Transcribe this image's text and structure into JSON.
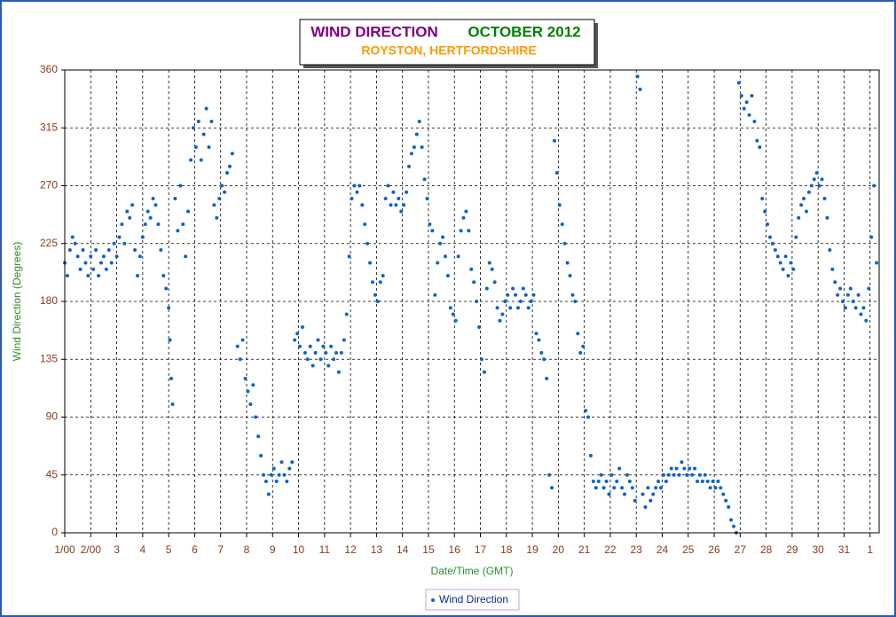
{
  "chart_data": {
    "type": "scatter",
    "title": "WIND DIRECTION",
    "period": "OCTOBER 2012",
    "subtitle": "ROYSTON, HERTFORDSHIRE",
    "title_color": "#800080",
    "period_color": "#008000",
    "subtitle_color": "#ff9900",
    "xlabel": "Date/Time (GMT)",
    "ylabel": "Wind Direction (Degrees)",
    "grid": true,
    "legend": "bottom",
    "xlim": [
      1,
      32.35
    ],
    "ylim": [
      0,
      360
    ],
    "yticks": [
      0,
      45,
      90,
      135,
      180,
      225,
      270,
      315,
      360
    ],
    "xticks": [
      {
        "value": 1,
        "label": "1/00"
      },
      {
        "value": 2,
        "label": "2/00"
      },
      3,
      4,
      5,
      6,
      7,
      8,
      9,
      10,
      11,
      12,
      13,
      14,
      15,
      16,
      17,
      18,
      19,
      20,
      21,
      22,
      23,
      24,
      25,
      26,
      27,
      28,
      29,
      30,
      31,
      {
        "value": 32,
        "label": "1"
      }
    ],
    "x": [
      1.0,
      1.1,
      1.2,
      1.3,
      1.4,
      1.5,
      1.6,
      1.7,
      1.8,
      1.9,
      2.0,
      2.1,
      2.2,
      2.3,
      2.4,
      2.5,
      2.6,
      2.7,
      2.8,
      2.9,
      3.0,
      3.1,
      3.2,
      3.3,
      3.4,
      3.5,
      3.6,
      3.7,
      3.8,
      3.9,
      4.0,
      4.1,
      4.2,
      4.3,
      4.4,
      4.5,
      4.6,
      4.7,
      4.8,
      4.9,
      5.0,
      5.05,
      5.1,
      5.15,
      5.25,
      5.35,
      5.45,
      5.55,
      5.65,
      5.75,
      5.85,
      5.95,
      6.05,
      6.15,
      6.25,
      6.35,
      6.45,
      6.55,
      6.65,
      6.75,
      6.85,
      6.95,
      7.05,
      7.15,
      7.25,
      7.35,
      7.45,
      7.65,
      7.75,
      7.85,
      7.95,
      8.05,
      8.15,
      8.25,
      8.35,
      8.45,
      8.55,
      8.65,
      8.75,
      8.85,
      8.95,
      9.05,
      9.15,
      9.25,
      9.35,
      9.45,
      9.55,
      9.65,
      9.75,
      9.85,
      9.95,
      10.05,
      10.15,
      10.25,
      10.35,
      10.45,
      10.55,
      10.65,
      10.75,
      10.85,
      10.95,
      11.05,
      11.15,
      11.25,
      11.35,
      11.45,
      11.55,
      11.65,
      11.75,
      11.85,
      11.95,
      12.05,
      12.15,
      12.25,
      12.35,
      12.45,
      12.55,
      12.65,
      12.75,
      12.85,
      12.95,
      13.05,
      13.15,
      13.25,
      13.35,
      13.45,
      13.55,
      13.65,
      13.75,
      13.85,
      13.95,
      14.05,
      14.15,
      14.25,
      14.35,
      14.45,
      14.55,
      14.65,
      14.75,
      14.85,
      14.95,
      15.05,
      15.15,
      15.25,
      15.35,
      15.45,
      15.55,
      15.65,
      15.75,
      15.85,
      15.95,
      16.05,
      16.15,
      16.25,
      16.35,
      16.45,
      16.55,
      16.65,
      16.75,
      16.85,
      16.95,
      17.05,
      17.15,
      17.25,
      17.35,
      17.45,
      17.55,
      17.65,
      17.75,
      17.85,
      17.95,
      18.05,
      18.15,
      18.25,
      18.35,
      18.45,
      18.55,
      18.65,
      18.75,
      18.85,
      18.95,
      19.05,
      19.15,
      19.25,
      19.35,
      19.45,
      19.55,
      19.65,
      19.75,
      19.85,
      19.95,
      20.05,
      20.15,
      20.25,
      20.35,
      20.45,
      20.55,
      20.65,
      20.75,
      20.85,
      20.95,
      21.05,
      21.15,
      21.25,
      21.35,
      21.45,
      21.55,
      21.65,
      21.75,
      21.85,
      21.95,
      22.05,
      22.15,
      22.25,
      22.35,
      22.45,
      22.55,
      22.65,
      22.75,
      22.85,
      22.95,
      23.05,
      23.15,
      23.25,
      23.35,
      23.45,
      23.55,
      23.65,
      23.75,
      23.85,
      23.95,
      24.05,
      24.15,
      24.25,
      24.35,
      24.45,
      24.55,
      24.65,
      24.75,
      24.85,
      24.95,
      25.05,
      25.15,
      25.25,
      25.35,
      25.45,
      25.55,
      25.65,
      25.75,
      25.85,
      25.95,
      26.05,
      26.15,
      26.25,
      26.35,
      26.45,
      26.55,
      26.65,
      26.75,
      26.85,
      26.95,
      27.05,
      27.15,
      27.25,
      27.35,
      27.45,
      27.55,
      27.65,
      27.75,
      27.85,
      27.95,
      28.05,
      28.15,
      28.25,
      28.35,
      28.45,
      28.55,
      28.65,
      28.75,
      28.85,
      28.95,
      29.05,
      29.15,
      29.25,
      29.35,
      29.45,
      29.55,
      29.65,
      29.75,
      29.85,
      29.95,
      30.05,
      30.15,
      30.25,
      30.35,
      30.45,
      30.55,
      30.65,
      30.75,
      30.85,
      30.95,
      31.05,
      31.15,
      31.25,
      31.35,
      31.45,
      31.55,
      31.65,
      31.75,
      31.85,
      31.95,
      32.05,
      32.15,
      32.25
    ],
    "series": [
      {
        "name": "Wind Direction",
        "color": "#0a64c8",
        "values": [
          210,
          200,
          220,
          230,
          225,
          215,
          205,
          220,
          210,
          200,
          215,
          205,
          220,
          200,
          210,
          215,
          205,
          220,
          210,
          225,
          215,
          230,
          240,
          225,
          250,
          245,
          255,
          220,
          200,
          215,
          230,
          240,
          250,
          245,
          260,
          255,
          240,
          220,
          200,
          190,
          175,
          150,
          120,
          100,
          260,
          235,
          270,
          240,
          215,
          250,
          290,
          315,
          300,
          320,
          290,
          310,
          330,
          300,
          320,
          255,
          245,
          260,
          270,
          265,
          280,
          285,
          295,
          145,
          135,
          150,
          120,
          110,
          100,
          115,
          90,
          75,
          60,
          45,
          40,
          30,
          45,
          50,
          40,
          45,
          55,
          45,
          40,
          50,
          55,
          150,
          155,
          145,
          160,
          140,
          135,
          145,
          130,
          140,
          150,
          135,
          145,
          140,
          130,
          145,
          135,
          140,
          125,
          140,
          150,
          170,
          215,
          260,
          270,
          265,
          270,
          255,
          240,
          225,
          210,
          195,
          185,
          180,
          195,
          200,
          260,
          270,
          255,
          265,
          255,
          260,
          250,
          255,
          265,
          285,
          295,
          300,
          310,
          320,
          300,
          275,
          260,
          240,
          235,
          185,
          210,
          225,
          230,
          215,
          200,
          175,
          170,
          165,
          215,
          235,
          245,
          250,
          235,
          205,
          195,
          180,
          160,
          135,
          125,
          190,
          210,
          205,
          195,
          175,
          165,
          170,
          180,
          185,
          175,
          190,
          185,
          175,
          180,
          190,
          185,
          175,
          180,
          185,
          155,
          150,
          140,
          135,
          120,
          45,
          35,
          305,
          280,
          255,
          240,
          225,
          210,
          200,
          185,
          180,
          155,
          140,
          145,
          95,
          90,
          60,
          40,
          35,
          40,
          45,
          35,
          40,
          30,
          45,
          35,
          40,
          50,
          35,
          30,
          45,
          40,
          35,
          25,
          355,
          345,
          30,
          20,
          35,
          25,
          30,
          35,
          40,
          35,
          45,
          40,
          45,
          50,
          45,
          50,
          45,
          55,
          50,
          45,
          50,
          45,
          50,
          40,
          45,
          40,
          45,
          40,
          35,
          40,
          35,
          40,
          35,
          30,
          25,
          20,
          10,
          5,
          0,
          350,
          340,
          330,
          335,
          325,
          340,
          320,
          305,
          300,
          260,
          250,
          240,
          230,
          225,
          220,
          215,
          210,
          205,
          215,
          200,
          210,
          205,
          230,
          245,
          255,
          260,
          250,
          265,
          270,
          275,
          280,
          270,
          275,
          260,
          245,
          220,
          205,
          195,
          185,
          190,
          180,
          175,
          185,
          190,
          180,
          175,
          185,
          170,
          175,
          165,
          190,
          230,
          270,
          210
        ]
      }
    ]
  }
}
